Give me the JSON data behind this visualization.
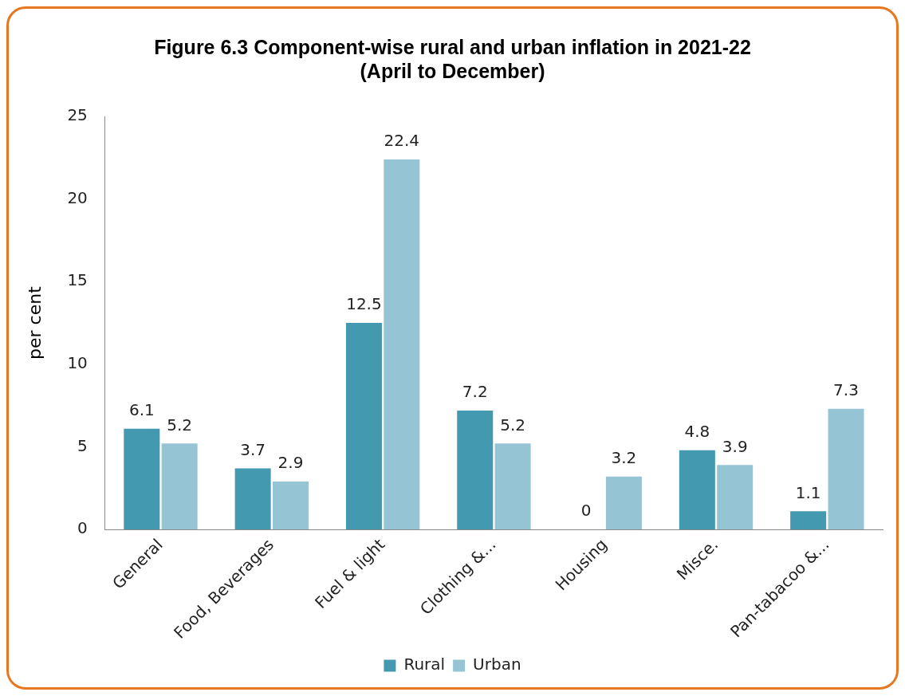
{
  "chart_data": {
    "type": "bar",
    "title": "Figure 6.3 Component-wise rural and urban inflation in 2021-22\n(April to December)",
    "ylabel": "per cent",
    "categories": [
      "General",
      "Food, Beverages",
      "Fuel & light",
      "Clothing &...",
      "Housing",
      "Misce.",
      "Pan-tabacoo &..."
    ],
    "series": [
      {
        "name": "Rural",
        "color": "#4399b0",
        "values": [
          6.1,
          3.7,
          12.5,
          7.2,
          0,
          4.8,
          1.1
        ]
      },
      {
        "name": "Urban",
        "color": "#95c4d5",
        "values": [
          5.2,
          2.9,
          22.4,
          5.2,
          3.2,
          3.9,
          7.3
        ]
      }
    ],
    "ylim": [
      0,
      25
    ],
    "yticks": [
      0,
      5,
      10,
      15,
      20,
      25
    ],
    "grid": false,
    "legend": "bottom",
    "data_labels": true
  }
}
